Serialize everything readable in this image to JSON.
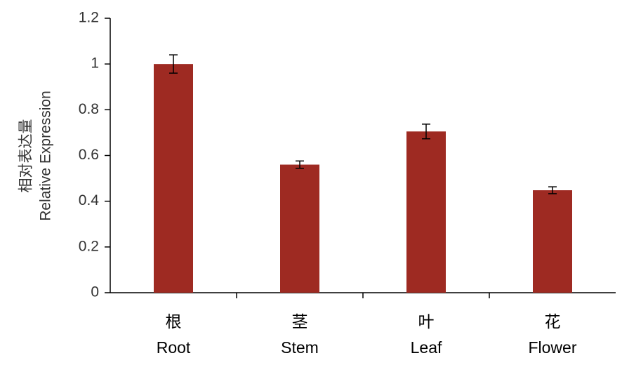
{
  "chart_data": {
    "type": "bar",
    "ylabel": [
      "相对表达量",
      "Relative Expression"
    ],
    "categories": [
      [
        "根",
        "Root"
      ],
      [
        "茎",
        "Stem"
      ],
      [
        "叶",
        "Leaf"
      ],
      [
        "花",
        "Flower"
      ]
    ],
    "values": [
      1.0,
      0.56,
      0.705,
      0.448
    ],
    "errors": [
      0.04,
      0.016,
      0.032,
      0.015
    ],
    "color": "#9e2a22",
    "ylim": [
      0,
      1.2
    ],
    "yticks": [
      0,
      0.2,
      0.4,
      0.6,
      0.8,
      1,
      1.2
    ],
    "grid": false
  }
}
